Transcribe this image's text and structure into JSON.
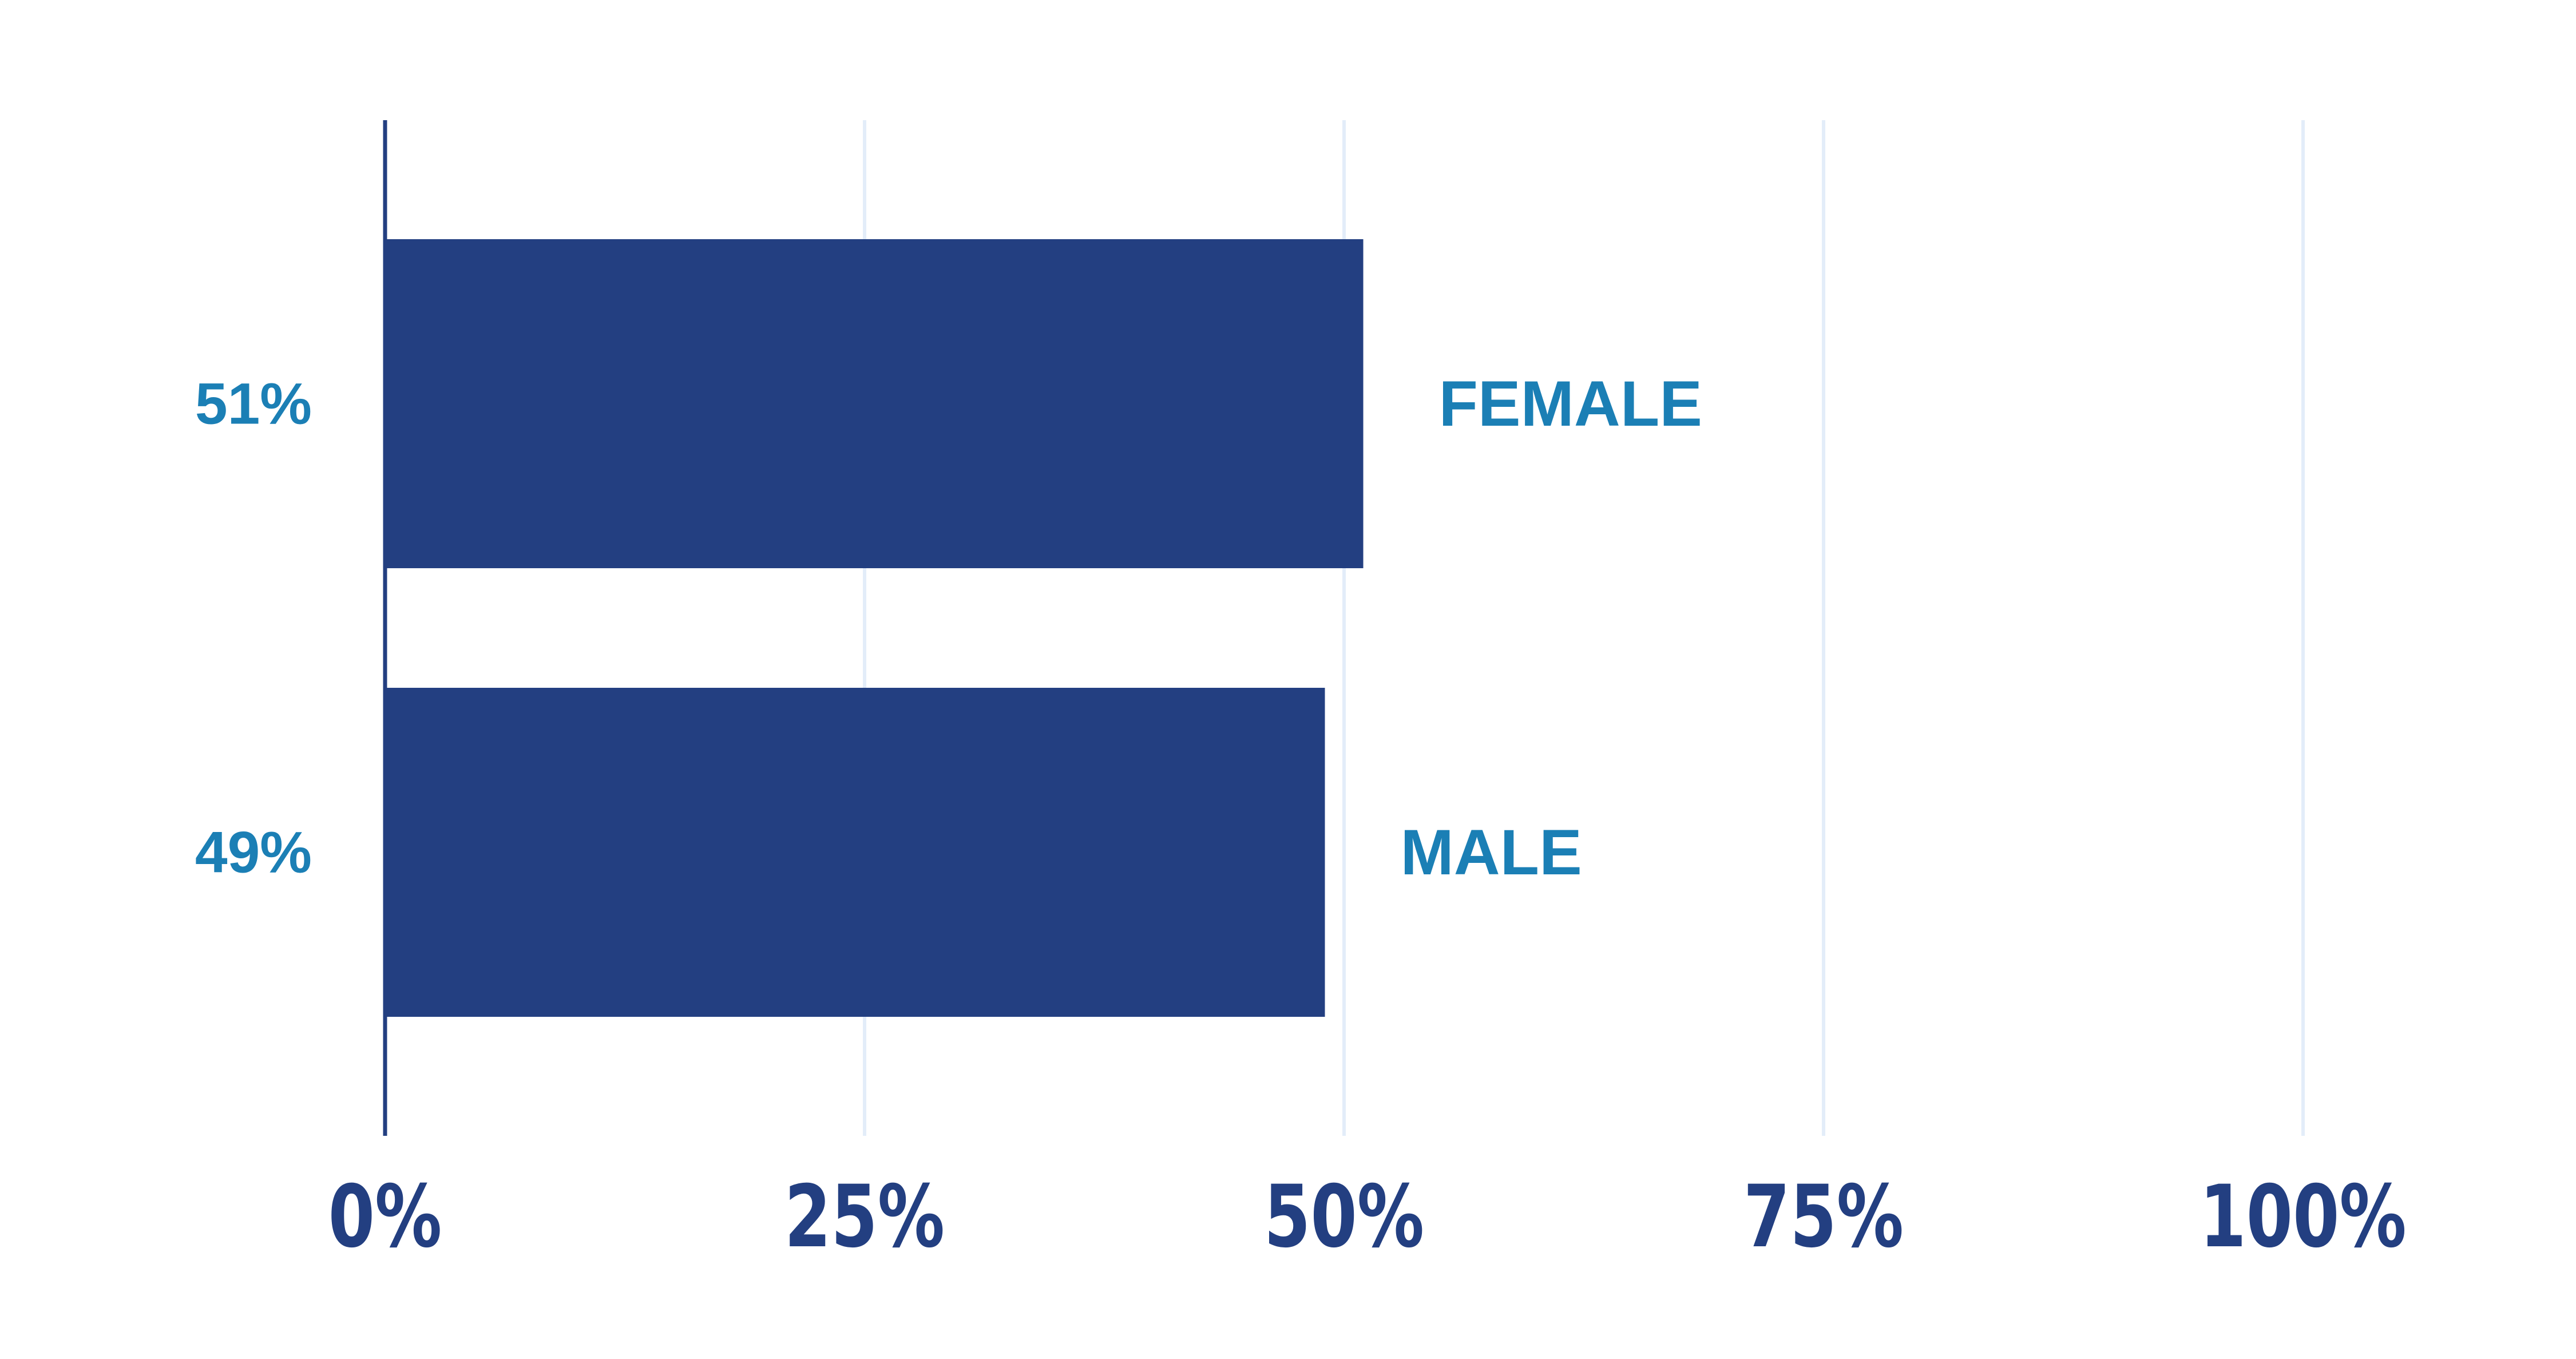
{
  "chart_data": {
    "type": "bar",
    "orientation": "horizontal",
    "title": "",
    "xlabel": "",
    "ylabel": "",
    "categories": [
      "FEMALE",
      "MALE"
    ],
    "values": [
      51,
      49
    ],
    "value_labels": [
      "51%",
      "49%"
    ],
    "xlim": [
      0,
      100
    ],
    "x_ticks": [
      0,
      25,
      50,
      75,
      100
    ],
    "x_tick_labels": [
      "0%",
      "25%",
      "50%",
      "75%",
      "100%"
    ],
    "grid": "vertical",
    "legend": "none"
  },
  "colors": {
    "bar": "#233f81",
    "axis_line": "#233f81",
    "tick_label": "#233f81",
    "value_label": "#1b7fb5",
    "category_label": "#1b7fb5",
    "gridline": "#e3edf9",
    "background": "#ffffff"
  }
}
